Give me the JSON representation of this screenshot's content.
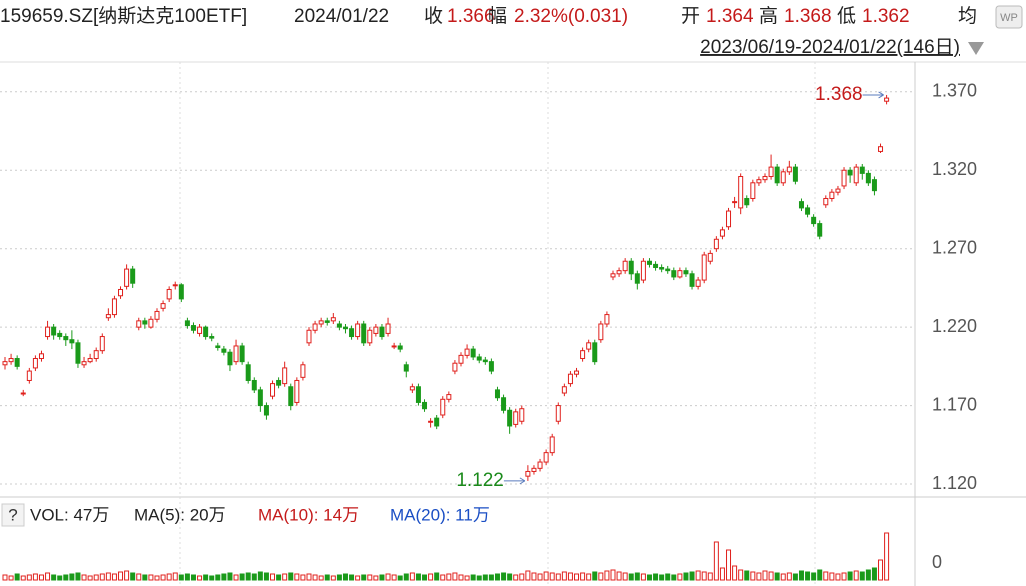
{
  "header": {
    "symbol": "159659.SZ[纳斯达克100ETF]",
    "date": "2024/01/22",
    "close_label": "收",
    "close": 1.366,
    "change_label": "幅",
    "change": "2.32%(0.031)",
    "open_label": "开",
    "open": 1.364,
    "high_label": "高",
    "high": 1.368,
    "low_label": "低",
    "low": 1.362,
    "avg_label": "均",
    "range": "2023/06/19-2024/01/22(146日)"
  },
  "chart_data": {
    "type": "candlestick",
    "up_color": "#e0201c",
    "down_color": "#1a9a1a",
    "ylim": [
      1.113,
      1.389
    ],
    "yticks": [
      {
        "value": 1.37,
        "label": "1.370"
      },
      {
        "value": 1.32,
        "label": "1.320"
      },
      {
        "value": 1.27,
        "label": "1.270"
      },
      {
        "value": 1.22,
        "label": "1.220"
      },
      {
        "value": 1.17,
        "label": "1.170"
      },
      {
        "value": 1.12,
        "label": "1.120"
      }
    ],
    "grid": true,
    "annotations": [
      1.368,
      1.122
    ],
    "candles": [
      [
        1.196,
        1.201,
        1.193,
        1.198
      ],
      [
        1.198,
        1.203,
        1.196,
        1.2
      ],
      [
        1.2,
        1.202,
        1.193,
        1.195
      ],
      [
        1.178,
        1.18,
        1.176,
        1.178
      ],
      [
        1.186,
        1.194,
        1.184,
        1.192
      ],
      [
        1.194,
        1.202,
        1.192,
        1.2
      ],
      [
        1.2,
        1.205,
        1.198,
        1.203
      ],
      [
        1.214,
        1.224,
        1.212,
        1.22
      ],
      [
        1.22,
        1.222,
        1.212,
        1.215
      ],
      [
        1.216,
        1.218,
        1.212,
        1.214
      ],
      [
        1.214,
        1.216,
        1.208,
        1.212
      ],
      [
        1.212,
        1.218,
        1.206,
        1.21
      ],
      [
        1.21,
        1.212,
        1.194,
        1.197
      ],
      [
        1.196,
        1.201,
        1.194,
        1.198
      ],
      [
        1.198,
        1.203,
        1.197,
        1.2
      ],
      [
        1.2,
        1.207,
        1.198,
        1.205
      ],
      [
        1.205,
        1.216,
        1.203,
        1.214
      ],
      [
        1.226,
        1.232,
        1.224,
        1.228
      ],
      [
        1.228,
        1.24,
        1.226,
        1.238
      ],
      [
        1.24,
        1.246,
        1.238,
        1.244
      ],
      [
        1.246,
        1.26,
        1.244,
        1.257
      ],
      [
        1.257,
        1.259,
        1.245,
        1.248
      ],
      [
        1.22,
        1.226,
        1.218,
        1.224
      ],
      [
        1.224,
        1.226,
        1.219,
        1.222
      ],
      [
        1.22,
        1.227,
        1.219,
        1.225
      ],
      [
        1.225,
        1.232,
        1.223,
        1.23
      ],
      [
        1.232,
        1.237,
        1.23,
        1.235
      ],
      [
        1.238,
        1.246,
        1.236,
        1.244
      ],
      [
        1.247,
        1.249,
        1.244,
        1.247
      ],
      [
        1.247,
        1.248,
        1.236,
        1.238
      ],
      [
        1.224,
        1.226,
        1.219,
        1.221
      ],
      [
        1.221,
        1.223,
        1.216,
        1.218
      ],
      [
        1.216,
        1.222,
        1.214,
        1.22
      ],
      [
        1.22,
        1.221,
        1.212,
        1.214
      ],
      [
        1.214,
        1.216,
        1.211,
        1.213
      ],
      [
        1.208,
        1.21,
        1.205,
        1.207
      ],
      [
        1.206,
        1.208,
        1.202,
        1.204
      ],
      [
        1.204,
        1.206,
        1.192,
        1.196
      ],
      [
        1.198,
        1.212,
        1.196,
        1.208
      ],
      [
        1.208,
        1.21,
        1.196,
        1.198
      ],
      [
        1.196,
        1.198,
        1.184,
        1.186
      ],
      [
        1.186,
        1.188,
        1.178,
        1.18
      ],
      [
        1.18,
        1.182,
        1.166,
        1.17
      ],
      [
        1.17,
        1.172,
        1.161,
        1.164
      ],
      [
        1.176,
        1.186,
        1.174,
        1.184
      ],
      [
        1.186,
        1.188,
        1.181,
        1.183
      ],
      [
        1.184,
        1.198,
        1.182,
        1.194
      ],
      [
        1.182,
        1.184,
        1.167,
        1.17
      ],
      [
        1.172,
        1.188,
        1.17,
        1.186
      ],
      [
        1.188,
        1.198,
        1.186,
        1.196
      ],
      [
        1.21,
        1.22,
        1.208,
        1.218
      ],
      [
        1.218,
        1.224,
        1.216,
        1.222
      ],
      [
        1.222,
        1.226,
        1.22,
        1.224
      ],
      [
        1.224,
        1.226,
        1.221,
        1.223
      ],
      [
        1.224,
        1.229,
        1.222,
        1.226
      ],
      [
        1.222,
        1.224,
        1.218,
        1.22
      ],
      [
        1.22,
        1.222,
        1.216,
        1.219
      ],
      [
        1.219,
        1.221,
        1.212,
        1.214
      ],
      [
        1.214,
        1.224,
        1.212,
        1.222
      ],
      [
        1.222,
        1.224,
        1.208,
        1.21
      ],
      [
        1.21,
        1.22,
        1.208,
        1.218
      ],
      [
        1.216,
        1.222,
        1.214,
        1.22
      ],
      [
        1.22,
        1.222,
        1.212,
        1.214
      ],
      [
        1.216,
        1.226,
        1.214,
        1.222
      ],
      [
        1.208,
        1.21,
        1.206,
        1.208
      ],
      [
        1.208,
        1.21,
        1.204,
        1.206
      ],
      [
        1.196,
        1.198,
        1.188,
        1.192
      ],
      [
        1.18,
        1.184,
        1.178,
        1.182
      ],
      [
        1.182,
        1.184,
        1.17,
        1.172
      ],
      [
        1.172,
        1.174,
        1.166,
        1.168
      ],
      [
        1.16,
        1.162,
        1.156,
        1.16
      ],
      [
        1.162,
        1.164,
        1.155,
        1.157
      ],
      [
        1.164,
        1.176,
        1.162,
        1.174
      ],
      [
        1.174,
        1.179,
        1.172,
        1.177
      ],
      [
        1.192,
        1.199,
        1.19,
        1.197
      ],
      [
        1.197,
        1.204,
        1.195,
        1.202
      ],
      [
        1.202,
        1.209,
        1.2,
        1.206
      ],
      [
        1.206,
        1.208,
        1.199,
        1.201
      ],
      [
        1.201,
        1.203,
        1.197,
        1.199
      ],
      [
        1.199,
        1.201,
        1.196,
        1.198
      ],
      [
        1.198,
        1.2,
        1.19,
        1.192
      ],
      [
        1.18,
        1.182,
        1.173,
        1.175
      ],
      [
        1.175,
        1.177,
        1.165,
        1.167
      ],
      [
        1.167,
        1.169,
        1.152,
        1.157
      ],
      [
        1.158,
        1.168,
        1.156,
        1.166
      ],
      [
        1.16,
        1.17,
        1.158,
        1.168
      ],
      [
        1.125,
        1.132,
        1.122,
        1.128
      ],
      [
        1.128,
        1.132,
        1.126,
        1.13
      ],
      [
        1.13,
        1.136,
        1.128,
        1.134
      ],
      [
        1.134,
        1.142,
        1.132,
        1.14
      ],
      [
        1.14,
        1.152,
        1.138,
        1.15
      ],
      [
        1.16,
        1.172,
        1.158,
        1.17
      ],
      [
        1.178,
        1.184,
        1.176,
        1.182
      ],
      [
        1.184,
        1.192,
        1.182,
        1.19
      ],
      [
        1.19,
        1.194,
        1.188,
        1.192
      ],
      [
        1.2,
        1.207,
        1.198,
        1.205
      ],
      [
        1.206,
        1.212,
        1.204,
        1.21
      ],
      [
        1.21,
        1.212,
        1.196,
        1.198
      ],
      [
        1.212,
        1.224,
        1.21,
        1.222
      ],
      [
        1.222,
        1.23,
        1.22,
        1.228
      ],
      [
        1.252,
        1.256,
        1.25,
        1.254
      ],
      [
        1.254,
        1.258,
        1.252,
        1.256
      ],
      [
        1.256,
        1.264,
        1.254,
        1.262
      ],
      [
        1.262,
        1.264,
        1.25,
        1.254
      ],
      [
        1.254,
        1.256,
        1.244,
        1.248
      ],
      [
        1.25,
        1.264,
        1.248,
        1.262
      ],
      [
        1.262,
        1.264,
        1.258,
        1.26
      ],
      [
        1.26,
        1.262,
        1.256,
        1.258
      ],
      [
        1.258,
        1.26,
        1.255,
        1.257
      ],
      [
        1.257,
        1.259,
        1.254,
        1.256
      ],
      [
        1.256,
        1.258,
        1.25,
        1.252
      ],
      [
        1.252,
        1.258,
        1.251,
        1.256
      ],
      [
        1.256,
        1.258,
        1.252,
        1.254
      ],
      [
        1.254,
        1.256,
        1.244,
        1.246
      ],
      [
        1.246,
        1.252,
        1.244,
        1.25
      ],
      [
        1.25,
        1.268,
        1.248,
        1.266
      ],
      [
        1.262,
        1.269,
        1.26,
        1.267
      ],
      [
        1.27,
        1.278,
        1.268,
        1.276
      ],
      [
        1.278,
        1.284,
        1.276,
        1.282
      ],
      [
        1.284,
        1.296,
        1.282,
        1.294
      ],
      [
        1.3,
        1.303,
        1.296,
        1.3
      ],
      [
        1.296,
        1.318,
        1.292,
        1.316
      ],
      [
        1.302,
        1.304,
        1.296,
        1.298
      ],
      [
        1.302,
        1.314,
        1.3,
        1.312
      ],
      [
        1.312,
        1.316,
        1.31,
        1.314
      ],
      [
        1.314,
        1.318,
        1.312,
        1.316
      ],
      [
        1.316,
        1.33,
        1.314,
        1.322
      ],
      [
        1.322,
        1.324,
        1.31,
        1.312
      ],
      [
        1.312,
        1.321,
        1.31,
        1.319
      ],
      [
        1.319,
        1.326,
        1.317,
        1.322
      ],
      [
        1.322,
        1.324,
        1.311,
        1.313
      ],
      [
        1.3,
        1.302,
        1.294,
        1.296
      ],
      [
        1.296,
        1.298,
        1.29,
        1.292
      ],
      [
        1.29,
        1.292,
        1.284,
        1.286
      ],
      [
        1.286,
        1.288,
        1.276,
        1.278
      ],
      [
        1.298,
        1.304,
        1.296,
        1.302
      ],
      [
        1.302,
        1.308,
        1.3,
        1.306
      ],
      [
        1.306,
        1.31,
        1.304,
        1.308
      ],
      [
        1.31,
        1.322,
        1.308,
        1.32
      ],
      [
        1.32,
        1.322,
        1.312,
        1.317
      ],
      [
        1.312,
        1.324,
        1.31,
        1.322
      ],
      [
        1.322,
        1.324,
        1.314,
        1.318
      ],
      [
        1.318,
        1.32,
        1.31,
        1.312
      ],
      [
        1.314,
        1.316,
        1.304,
        1.307
      ],
      [
        1.332,
        1.337,
        1.331,
        1.335
      ],
      [
        1.364,
        1.368,
        1.362,
        1.366
      ]
    ],
    "volume": {
      "header": {
        "help": "?",
        "vol": "VOL: 47万",
        "ma5": "MA(5): 20万",
        "ma10": "MA(10): 14万",
        "ma20": "MA(20): 11万"
      },
      "ylim": [
        0,
        50
      ],
      "yticks": [
        0
      ],
      "values": [
        5,
        4,
        6,
        4,
        5,
        6,
        5,
        7,
        5,
        4,
        5,
        6,
        7,
        5,
        4,
        5,
        6,
        7,
        6,
        8,
        9,
        7,
        6,
        5,
        5,
        4,
        5,
        6,
        7,
        5,
        6,
        5,
        4,
        5,
        4,
        5,
        6,
        7,
        5,
        6,
        7,
        6,
        8,
        7,
        6,
        5,
        6,
        7,
        6,
        5,
        6,
        5,
        4,
        5,
        4,
        5,
        6,
        5,
        4,
        5,
        5,
        4,
        5,
        6,
        5,
        4,
        6,
        7,
        6,
        5,
        6,
        7,
        5,
        6,
        7,
        5,
        4,
        5,
        4,
        5,
        5,
        6,
        7,
        6,
        5,
        6,
        9,
        7,
        6,
        8,
        7,
        6,
        8,
        7,
        6,
        7,
        6,
        8,
        7,
        9,
        10,
        8,
        7,
        6,
        7,
        6,
        5,
        6,
        5,
        6,
        5,
        6,
        7,
        8,
        9,
        8,
        7,
        38,
        12,
        30,
        14,
        10,
        9,
        8,
        7,
        9,
        8,
        7,
        6,
        7,
        6,
        9,
        8,
        7,
        10,
        8,
        7,
        6,
        7,
        8,
        9,
        8,
        10,
        12,
        20,
        47
      ]
    }
  }
}
